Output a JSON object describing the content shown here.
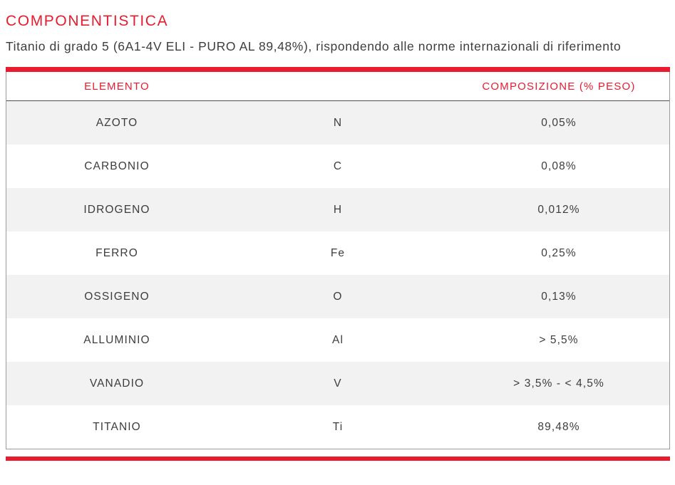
{
  "page": {
    "title": "COMPONENTISTICA",
    "subtitle": "Titanio di grado 5 (6A1-4V ELI - PURO AL 89,48%), rispondendo alle norme internazionali di riferimento"
  },
  "colors": {
    "accent_red": "#e81c2e",
    "text_dark": "#3d3d3d",
    "row_alt_gray": "#f2f2f2",
    "border_gray": "#9b9b9b"
  },
  "table": {
    "headers": [
      "ELEMENTO",
      "COMPOSIZIONE (% PESO)"
    ],
    "rows": [
      {
        "name": "AZOTO",
        "symbol": "N",
        "value": "0,05%"
      },
      {
        "name": "CARBONIO",
        "symbol": "C",
        "value": "0,08%"
      },
      {
        "name": "IDROGENO",
        "symbol": "H",
        "value": "0,012%"
      },
      {
        "name": "FERRO",
        "symbol": "Fe",
        "value": "0,25%"
      },
      {
        "name": "OSSIGENO",
        "symbol": "O",
        "value": "0,13%"
      },
      {
        "name": "ALLUMINIO",
        "symbol": "Al",
        "value": "> 5,5%"
      },
      {
        "name": "VANADIO",
        "symbol": "V",
        "value": "> 3,5% - < 4,5%"
      },
      {
        "name": "TITANIO",
        "symbol": "Ti",
        "value": "89,48%"
      }
    ]
  }
}
